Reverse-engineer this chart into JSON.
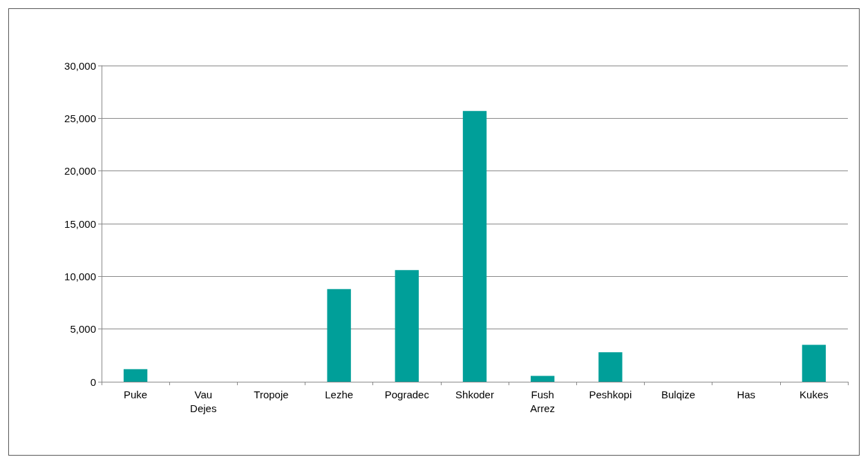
{
  "chart_data": {
    "type": "bar",
    "categories": [
      "Puke",
      "Vau Dejes",
      "Tropoje",
      "Lezhe",
      "Pogradec",
      "Shkoder",
      "Fush Arrez",
      "Peshkopi",
      "Bulqize",
      "Has",
      "Kukes"
    ],
    "values": [
      1200,
      0,
      0,
      8800,
      10600,
      25700,
      560,
      2800,
      0,
      0,
      3500
    ],
    "color": "#009f99",
    "ylim": [
      0,
      30000
    ],
    "yticks": [
      0,
      {
        "value": 5000,
        "label": "5,000"
      },
      {
        "value": 10000,
        "label": "10,000"
      },
      {
        "value": 15000,
        "label": "15,000"
      },
      {
        "value": 20000,
        "label": "20,000"
      },
      {
        "value": 25000,
        "label": "25,000"
      },
      {
        "value": 30000,
        "label": "30,000"
      }
    ],
    "grid": "y"
  }
}
